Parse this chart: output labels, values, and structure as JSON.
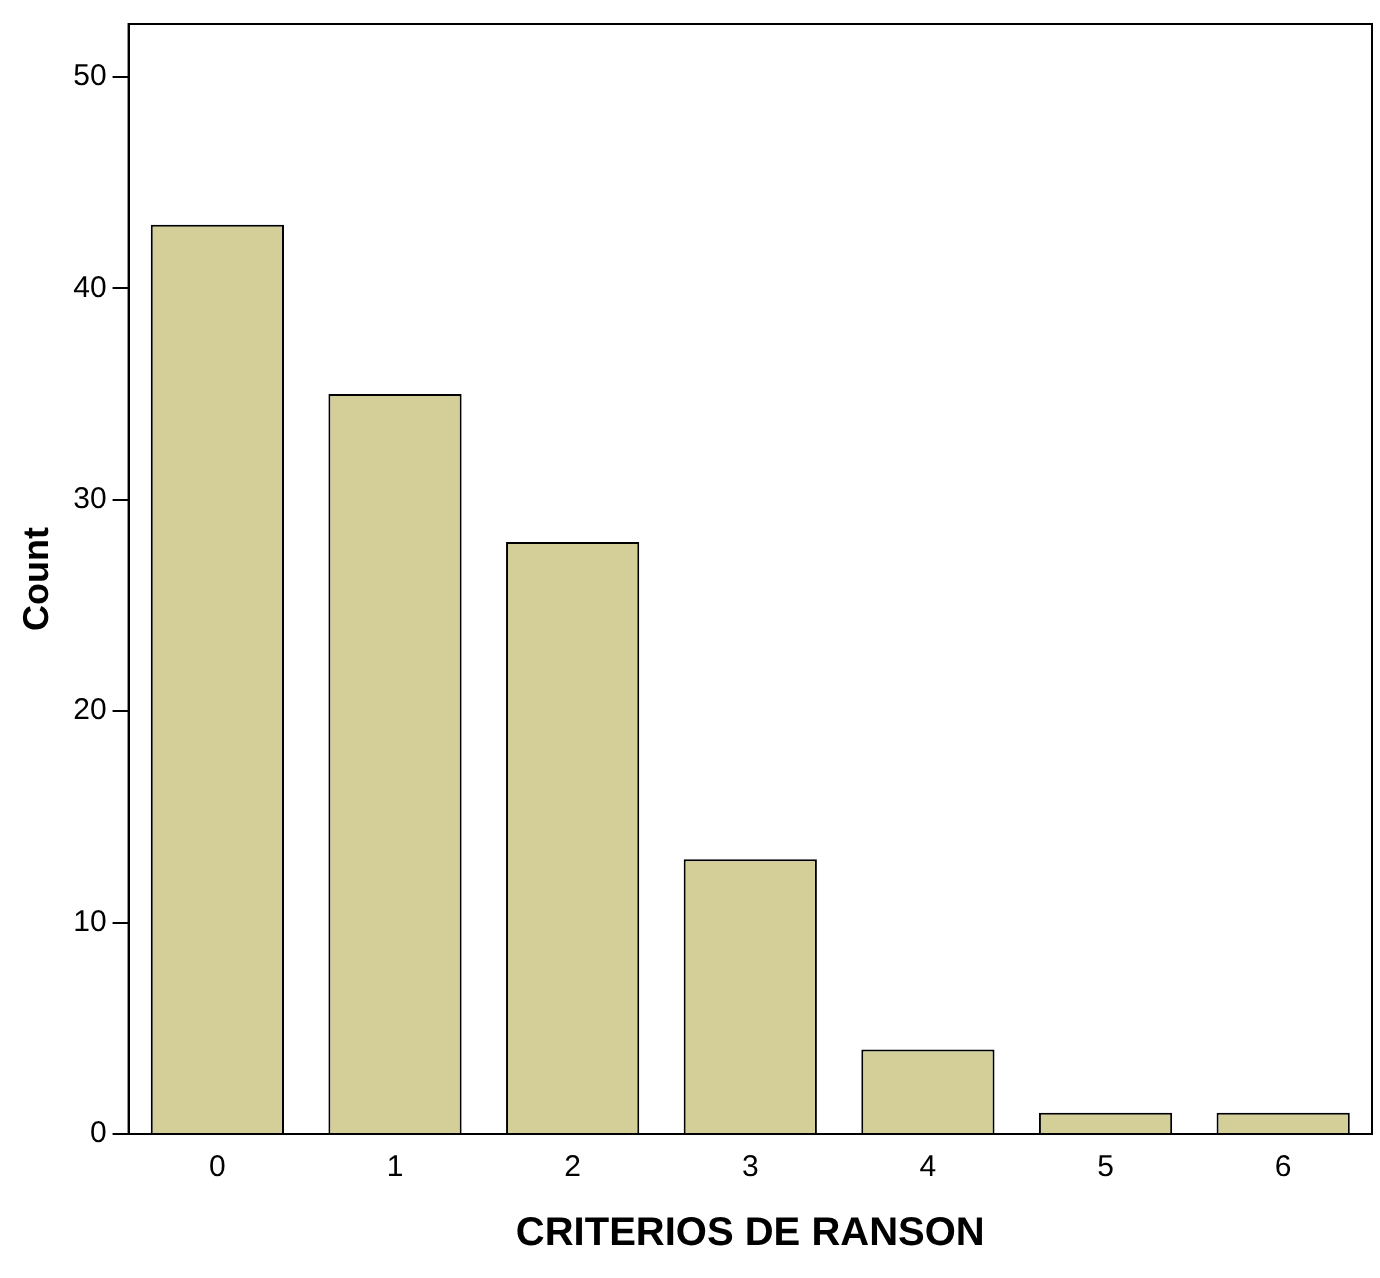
{
  "chart_data": {
    "type": "bar",
    "xlabel": "CRITERIOS DE RANSON",
    "ylabel": "Count",
    "categories": [
      "0",
      "1",
      "2",
      "3",
      "4",
      "5",
      "6"
    ],
    "values": [
      43,
      35,
      28,
      13,
      4,
      1,
      1
    ],
    "color": "#d4cf98",
    "ylim": [
      0,
      52.5
    ],
    "yticks": [
      0,
      10,
      20,
      30,
      40,
      50
    ],
    "grid": false,
    "legend": false
  }
}
